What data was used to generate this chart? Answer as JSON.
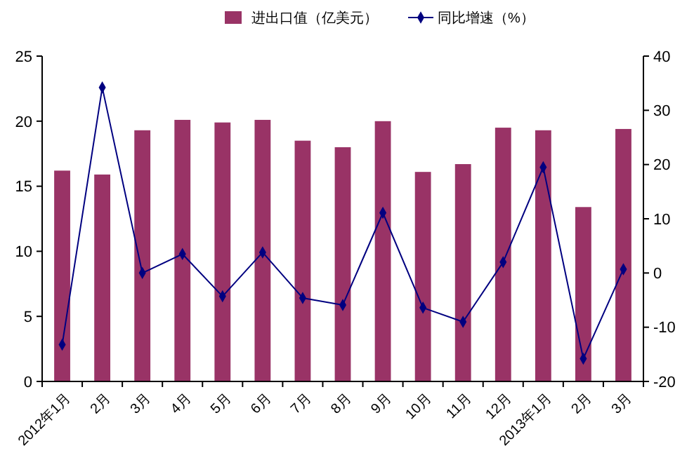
{
  "chart_data": {
    "type": "bar",
    "categories": [
      "2012年1月",
      "2月",
      "3月",
      "4月",
      "5月",
      "6月",
      "7月",
      "8月",
      "9月",
      "10月",
      "11月",
      "12月",
      "2013年1月",
      "2月",
      "3月"
    ],
    "series": [
      {
        "name": "进出口值（亿美元）",
        "color": "#993366",
        "values": [
          16.2,
          15.9,
          19.3,
          20.1,
          19.9,
          20.1,
          18.5,
          18.0,
          20.0,
          16.1,
          16.7,
          19.5,
          19.3,
          13.4,
          19.4
        ]
      },
      {
        "name": "同比增速（%）",
        "type": "line",
        "axis": "y2",
        "color": "#000080",
        "marker": "diamond",
        "values": [
          -13.2,
          34.2,
          0,
          3.5,
          -4.3,
          3.8,
          -4.6,
          -5.9,
          11.1,
          -6.4,
          -9,
          2,
          19.5,
          -15.8,
          0.7
        ]
      }
    ],
    "ylim": [
      0,
      25
    ],
    "yticks": [
      0,
      5,
      10,
      15,
      20,
      25
    ],
    "y2lim": [
      -20,
      40
    ],
    "y2ticks": [
      -20,
      -10,
      0,
      10,
      20,
      30,
      40
    ],
    "legend": "top",
    "grid": false
  }
}
